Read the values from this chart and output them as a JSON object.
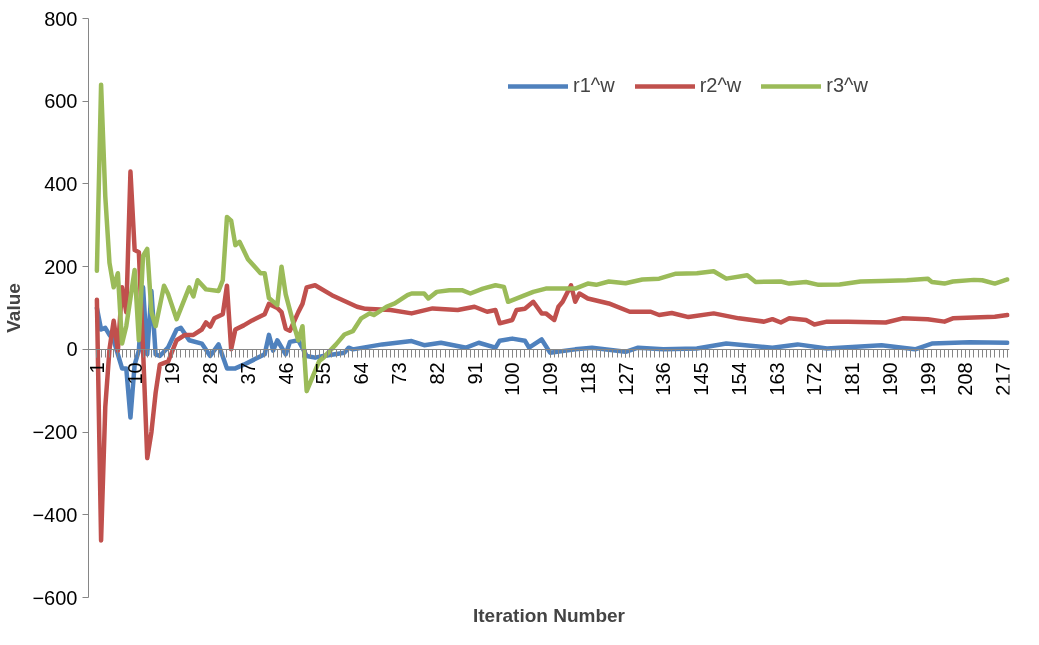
{
  "chart_data": {
    "type": "line",
    "xlabel": "Iteration Number",
    "ylabel": "Value",
    "xlim": [
      -1,
      218.5
    ],
    "xticks": [
      1,
      10,
      19,
      28,
      37,
      46,
      55,
      64,
      73,
      82,
      91,
      100,
      109,
      118,
      127,
      136,
      145,
      154,
      163,
      172,
      181,
      190,
      199,
      208,
      217
    ],
    "ylim": [
      -600,
      800
    ],
    "yticks": [
      -600,
      -400,
      -200,
      0,
      200,
      400,
      600,
      800
    ],
    "grid": false,
    "legend": "top right",
    "marker": "none",
    "line_style": "solid",
    "series": [
      {
        "name": "r1^w",
        "color": "#4f81bd",
        "x": [
          1,
          2,
          3,
          4,
          5,
          7,
          8,
          9,
          10,
          11,
          12,
          13,
          14,
          15,
          16,
          18,
          20,
          21,
          23,
          26,
          28,
          30,
          32,
          34,
          36,
          41,
          42,
          43,
          44,
          46,
          47,
          49,
          51,
          53,
          55,
          60,
          61,
          62,
          69,
          76,
          79,
          83,
          89,
          92,
          96,
          97,
          100,
          103,
          104,
          107,
          109,
          115,
          119,
          127,
          130,
          136,
          144,
          151,
          162,
          168,
          175,
          188,
          196,
          200,
          209,
          218
        ],
        "values": [
          100,
          48,
          52,
          35,
          22,
          -46,
          -46,
          -165,
          -37,
          -3,
          150,
          -12,
          141,
          -12,
          -16,
          5,
          48,
          52,
          22,
          14,
          -16,
          12,
          -46,
          -46,
          -37,
          -12,
          35,
          -3,
          22,
          -12,
          18,
          22,
          -16,
          -20,
          -16,
          -8,
          4,
          0,
          12,
          20,
          10,
          16,
          4,
          16,
          4,
          21,
          26,
          21,
          4,
          24,
          -8,
          0,
          4,
          -6,
          4,
          0,
          2,
          14,
          4,
          12,
          2,
          10,
          0,
          14,
          17,
          16
        ]
      },
      {
        "name": "r2^w",
        "color": "#c0504d",
        "x": [
          1,
          2,
          3,
          4,
          5,
          6,
          7,
          8,
          9,
          10,
          11,
          12,
          13,
          14,
          15,
          16,
          18,
          20,
          22,
          24,
          26,
          27,
          28,
          29,
          31,
          32,
          33,
          34,
          36,
          38,
          40,
          41,
          42,
          44,
          45,
          46,
          47,
          49,
          50,
          51,
          53,
          57,
          63,
          65,
          71,
          76,
          81,
          87,
          91,
          94,
          96,
          97,
          100,
          101,
          103,
          105,
          107,
          108,
          110,
          111,
          112,
          114,
          115,
          116,
          118,
          123,
          128,
          133,
          135,
          138,
          142,
          148,
          154,
          160,
          162,
          164,
          166,
          170,
          172,
          175,
          180,
          189,
          193,
          199,
          203,
          205,
          215,
          218
        ],
        "values": [
          120,
          -462,
          -139,
          0,
          69,
          -3,
          150,
          90,
          430,
          240,
          235,
          0,
          -263,
          -200,
          -105,
          -37,
          -29,
          22,
          35,
          35,
          48,
          65,
          55,
          75,
          85,
          154,
          0,
          48,
          58,
          70,
          80,
          85,
          110,
          100,
          90,
          50,
          45,
          90,
          110,
          150,
          155,
          131,
          103,
          98,
          95,
          87,
          99,
          95,
          103,
          91,
          95,
          63,
          71,
          95,
          98,
          115,
          87,
          87,
          71,
          103,
          115,
          155,
          115,
          135,
          123,
          111,
          91,
          91,
          83,
          88,
          78,
          87,
          75,
          67,
          73,
          65,
          75,
          71,
          60,
          67,
          67,
          65,
          75,
          73,
          67,
          75,
          79,
          83
        ]
      },
      {
        "name": "r3^w",
        "color": "#9bbb59",
        "x": [
          1,
          2,
          3,
          4,
          5,
          6,
          7,
          8,
          10,
          11,
          12,
          13,
          14,
          15,
          17,
          18,
          20,
          23,
          24,
          25,
          27,
          30,
          31,
          32,
          33,
          34,
          35,
          37,
          40,
          41,
          42,
          44,
          45,
          46,
          48,
          49,
          50,
          51,
          54,
          55,
          58,
          60,
          62,
          64,
          66,
          67,
          70,
          72,
          75,
          76,
          79,
          80,
          82,
          85,
          88,
          90,
          93,
          96,
          98,
          99,
          102,
          105,
          108,
          115,
          118,
          120,
          123,
          127,
          131,
          135,
          139,
          144,
          148,
          151,
          156,
          158,
          164,
          166,
          170,
          173,
          178,
          183,
          188,
          194,
          199,
          200,
          203,
          205,
          210,
          212,
          215,
          218
        ],
        "values": [
          190,
          640,
          370,
          209,
          150,
          184,
          14,
          56,
          192,
          22,
          226,
          243,
          90,
          56,
          154,
          133,
          73,
          150,
          128,
          167,
          145,
          141,
          167,
          320,
          311,
          252,
          260,
          218,
          184,
          184,
          124,
          107,
          200,
          133,
          56,
          22,
          56,
          -101,
          -28,
          -20,
          12,
          36,
          44,
          75,
          87,
          83,
          103,
          111,
          131,
          135,
          135,
          123,
          139,
          143,
          143,
          135,
          147,
          155,
          151,
          115,
          127,
          139,
          147,
          147,
          159,
          156,
          164,
          160,
          169,
          171,
          183,
          184,
          189,
          171,
          179,
          163,
          164,
          159,
          163,
          156,
          157,
          164,
          165,
          167,
          171,
          163,
          159,
          164,
          168,
          167,
          159,
          169
        ]
      }
    ]
  }
}
